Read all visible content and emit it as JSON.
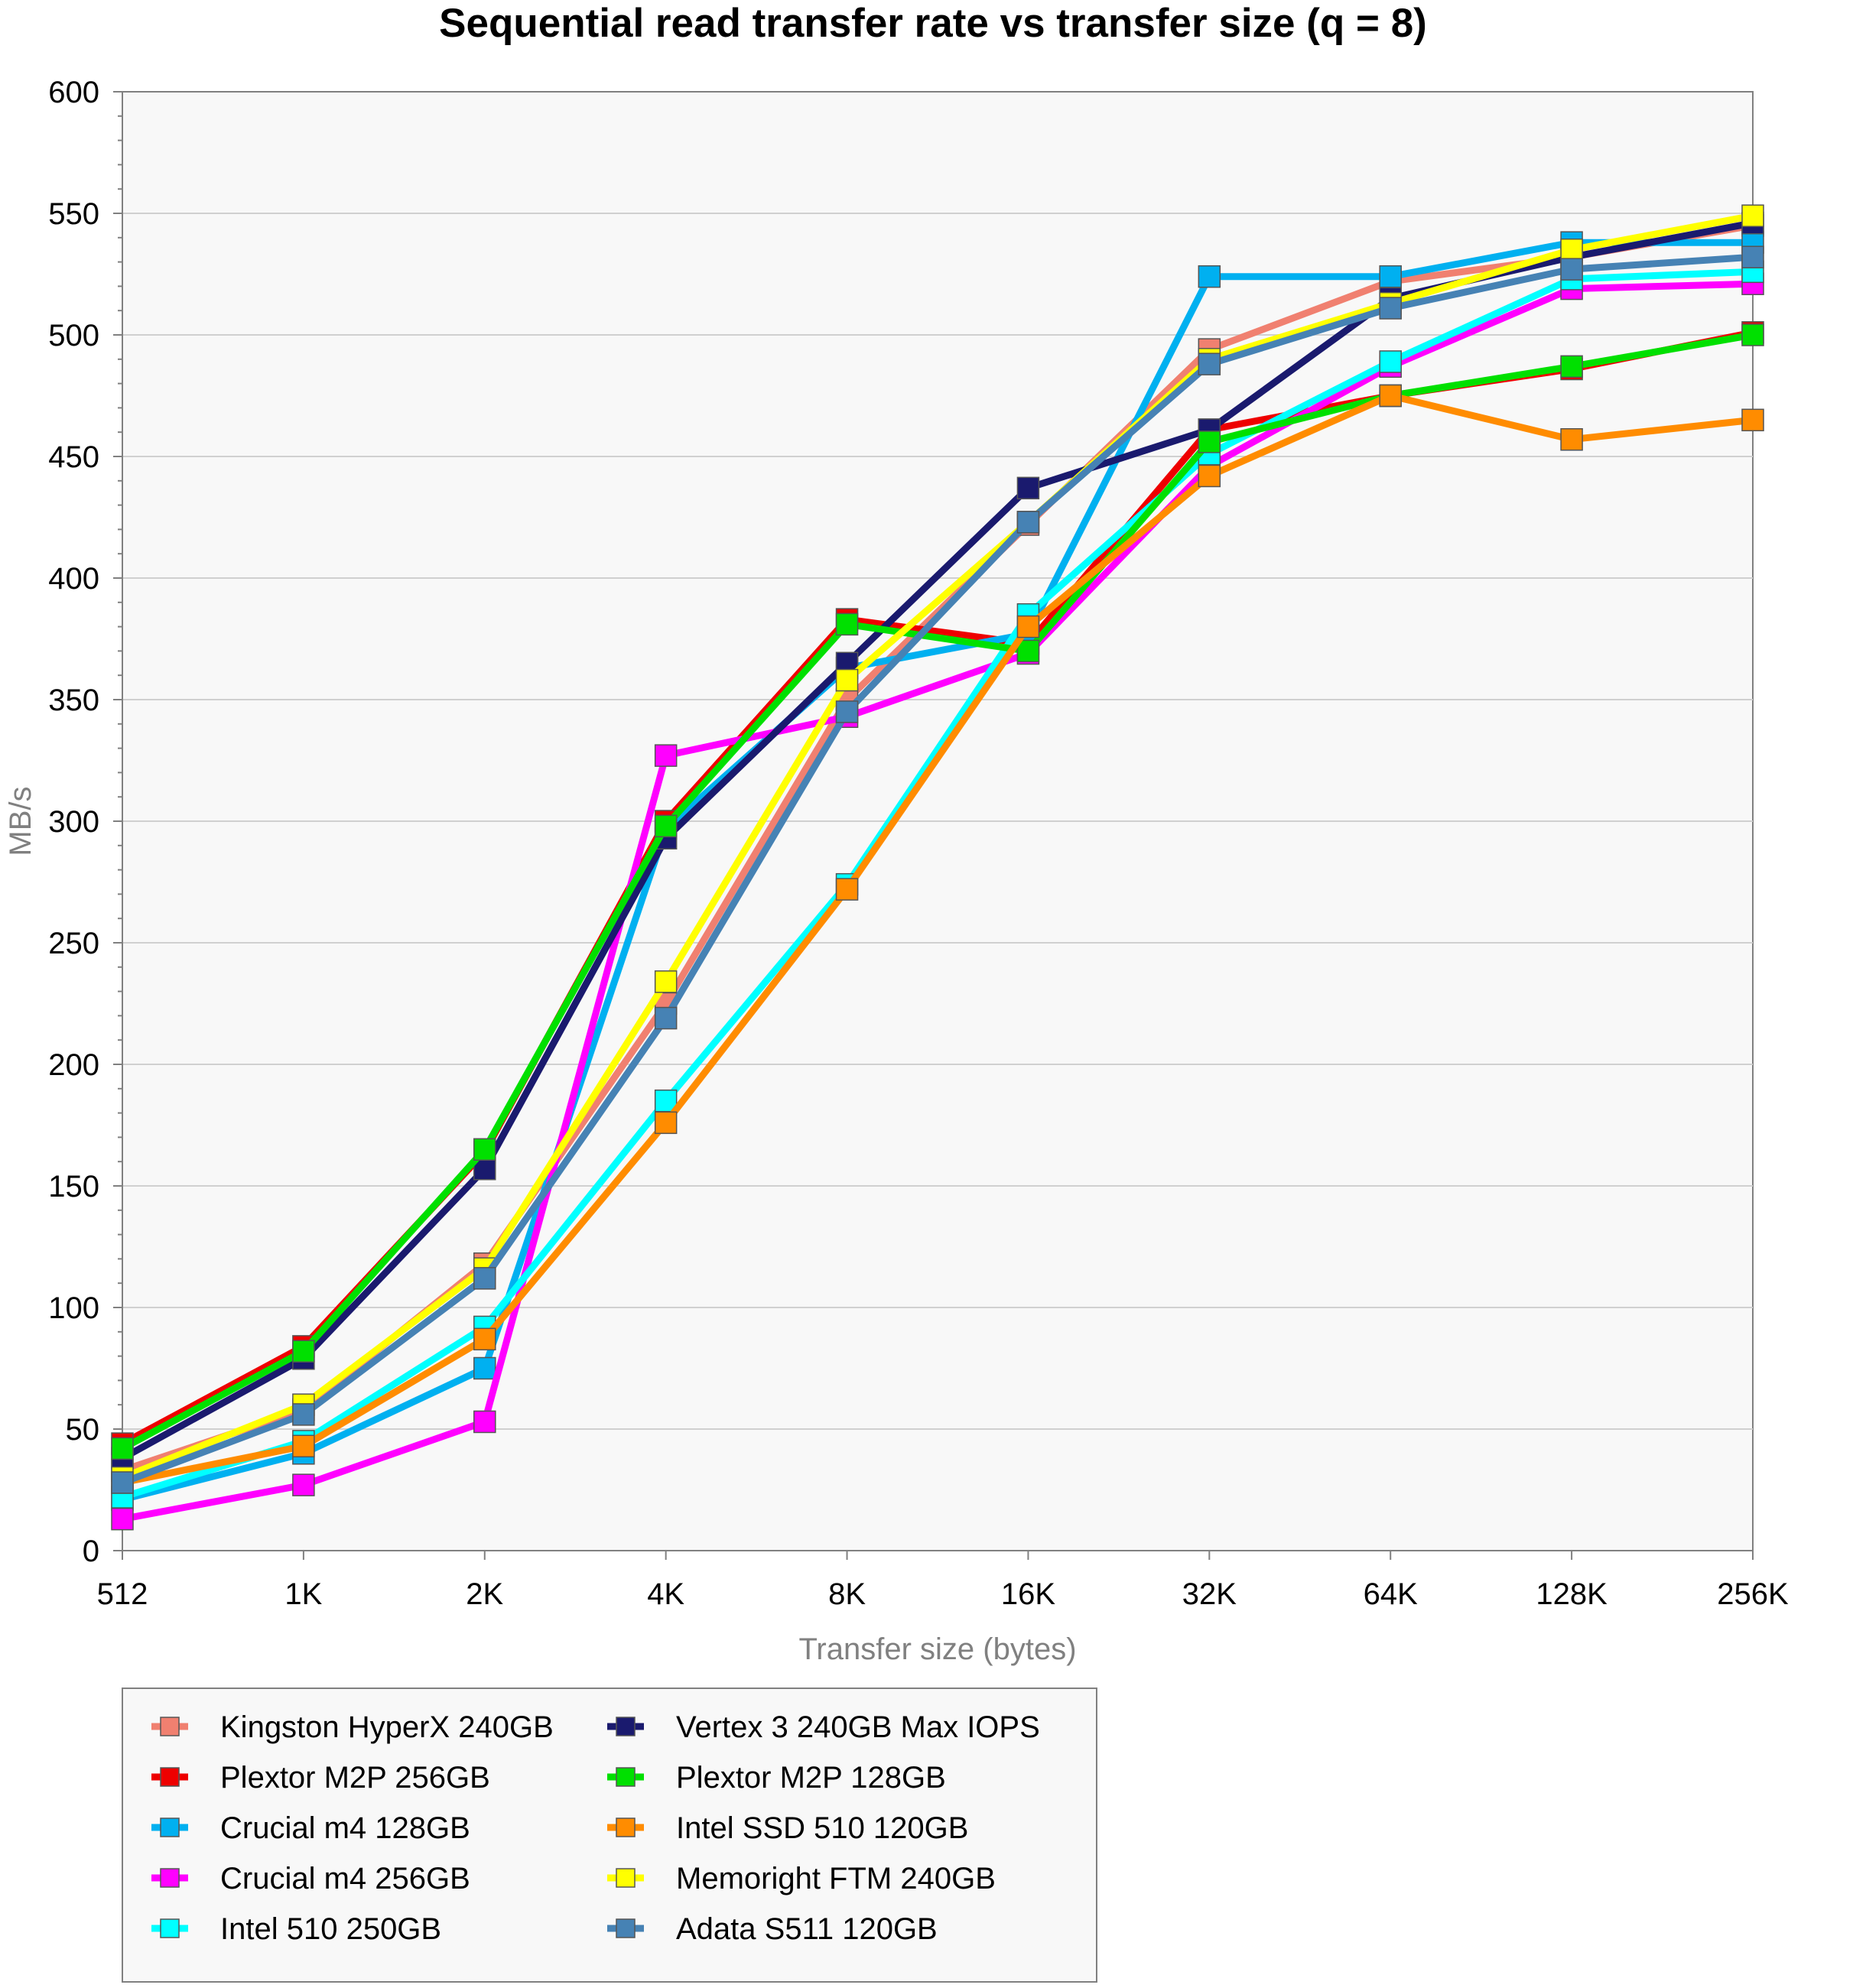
{
  "chart_data": {
    "type": "line",
    "title": "Sequential read transfer rate vs transfer size (q = 8)",
    "xlabel": "Transfer size (bytes)",
    "ylabel": "MB/s",
    "categories": [
      "512",
      "1K",
      "2K",
      "4K",
      "8K",
      "16K",
      "32K",
      "64K",
      "128K",
      "256K"
    ],
    "ylim": [
      0,
      600
    ],
    "yticks": [
      0,
      50,
      100,
      150,
      200,
      250,
      300,
      350,
      400,
      450,
      500,
      550,
      600
    ],
    "grid": true,
    "legend_position": "bottom-left",
    "series": [
      {
        "name": "Kingston HyperX 240GB",
        "color": "#f08070",
        "values": [
          33,
          58,
          118,
          225,
          350,
          422,
          494,
          522,
          532,
          545
        ]
      },
      {
        "name": "Plextor M2P 256GB",
        "color": "#ee0000",
        "values": [
          44,
          84,
          164,
          300,
          383,
          373,
          461,
          475,
          486,
          501
        ]
      },
      {
        "name": "Crucial m4 128GB",
        "color": "#00b0f0",
        "values": [
          21,
          40,
          75,
          297,
          363,
          377,
          524,
          524,
          538,
          538
        ]
      },
      {
        "name": "Crucial m4 256GB",
        "color": "#ff00ff",
        "values": [
          13,
          27,
          53,
          327,
          343,
          369,
          446,
          487,
          519,
          521
        ]
      },
      {
        "name": "Intel 510 250GB",
        "color": "#00ffff",
        "values": [
          22,
          45,
          92,
          185,
          274,
          385,
          451,
          489,
          523,
          526
        ]
      },
      {
        "name": "Vertex 3 240GB Max IOPS",
        "color": "#1a1a6e",
        "values": [
          38,
          79,
          157,
          293,
          365,
          437,
          461,
          515,
          532,
          546
        ]
      },
      {
        "name": "Plextor M2P 128GB",
        "color": "#00e000",
        "values": [
          42,
          82,
          165,
          298,
          381,
          370,
          456,
          475,
          487,
          500
        ]
      },
      {
        "name": "Intel SSD 510 120GB",
        "color": "#ff8c00",
        "values": [
          28,
          43,
          87,
          176,
          272,
          380,
          442,
          475,
          457,
          465
        ]
      },
      {
        "name": "Memoright FTM 240GB",
        "color": "#ffff00",
        "values": [
          30,
          60,
          116,
          234,
          358,
          423,
          490,
          513,
          535,
          549
        ]
      },
      {
        "name": "Adata S511 120GB",
        "color": "#4682b4",
        "values": [
          28,
          56,
          112,
          219,
          345,
          423,
          488,
          511,
          527,
          532
        ]
      }
    ]
  }
}
